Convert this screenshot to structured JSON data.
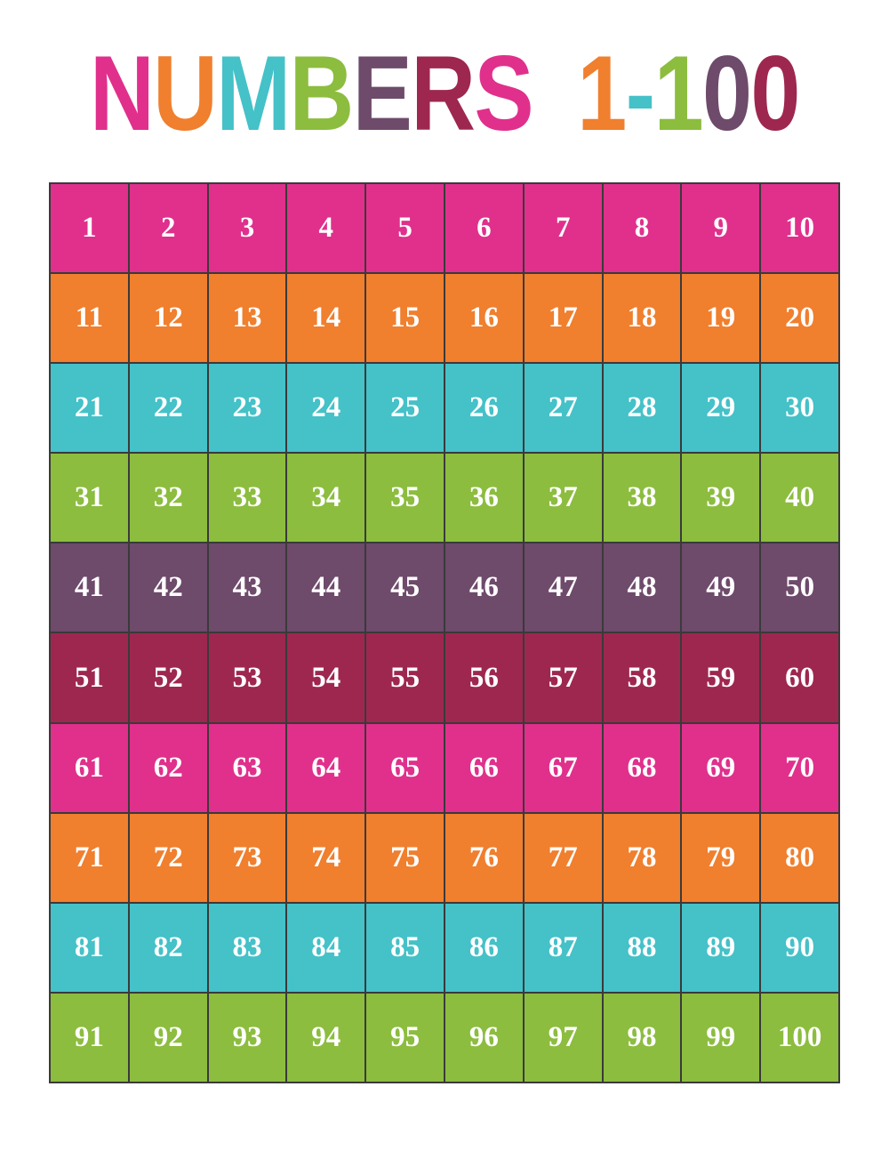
{
  "title": {
    "letters": [
      {
        "char": "N",
        "color": "#e0308c"
      },
      {
        "char": "U",
        "color": "#f07f2e"
      },
      {
        "char": "M",
        "color": "#45c1c8"
      },
      {
        "char": "B",
        "color": "#8cbd3f"
      },
      {
        "char": "E",
        "color": "#6e4a6b"
      },
      {
        "char": "R",
        "color": "#9e2750"
      },
      {
        "char": "S",
        "color": "#e0308c"
      },
      {
        "char": " ",
        "color": "#ffffff"
      },
      {
        "char": "1",
        "color": "#f07f2e"
      },
      {
        "char": "-",
        "color": "#45c1c8"
      },
      {
        "char": "1",
        "color": "#8cbd3f"
      },
      {
        "char": "0",
        "color": "#6e4a6b"
      },
      {
        "char": "0",
        "color": "#9e2750"
      }
    ]
  },
  "grid": {
    "row_colors": [
      "#e0308c",
      "#f07f2e",
      "#45c1c8",
      "#8cbd3f",
      "#6e4a6b",
      "#9e2750",
      "#e0308c",
      "#f07f2e",
      "#45c1c8",
      "#8cbd3f"
    ],
    "rows": [
      [
        "1",
        "2",
        "3",
        "4",
        "5",
        "6",
        "7",
        "8",
        "9",
        "10"
      ],
      [
        "11",
        "12",
        "13",
        "14",
        "15",
        "16",
        "17",
        "18",
        "19",
        "20"
      ],
      [
        "21",
        "22",
        "23",
        "24",
        "25",
        "26",
        "27",
        "28",
        "29",
        "30"
      ],
      [
        "31",
        "32",
        "33",
        "34",
        "35",
        "36",
        "37",
        "38",
        "39",
        "40"
      ],
      [
        "41",
        "42",
        "43",
        "44",
        "45",
        "46",
        "47",
        "48",
        "49",
        "50"
      ],
      [
        "51",
        "52",
        "53",
        "54",
        "55",
        "56",
        "57",
        "58",
        "59",
        "60"
      ],
      [
        "61",
        "62",
        "63",
        "64",
        "65",
        "66",
        "67",
        "68",
        "69",
        "70"
      ],
      [
        "71",
        "72",
        "73",
        "74",
        "75",
        "76",
        "77",
        "78",
        "79",
        "80"
      ],
      [
        "81",
        "82",
        "83",
        "84",
        "85",
        "86",
        "87",
        "88",
        "89",
        "90"
      ],
      [
        "91",
        "92",
        "93",
        "94",
        "95",
        "96",
        "97",
        "98",
        "99",
        "100"
      ]
    ]
  }
}
